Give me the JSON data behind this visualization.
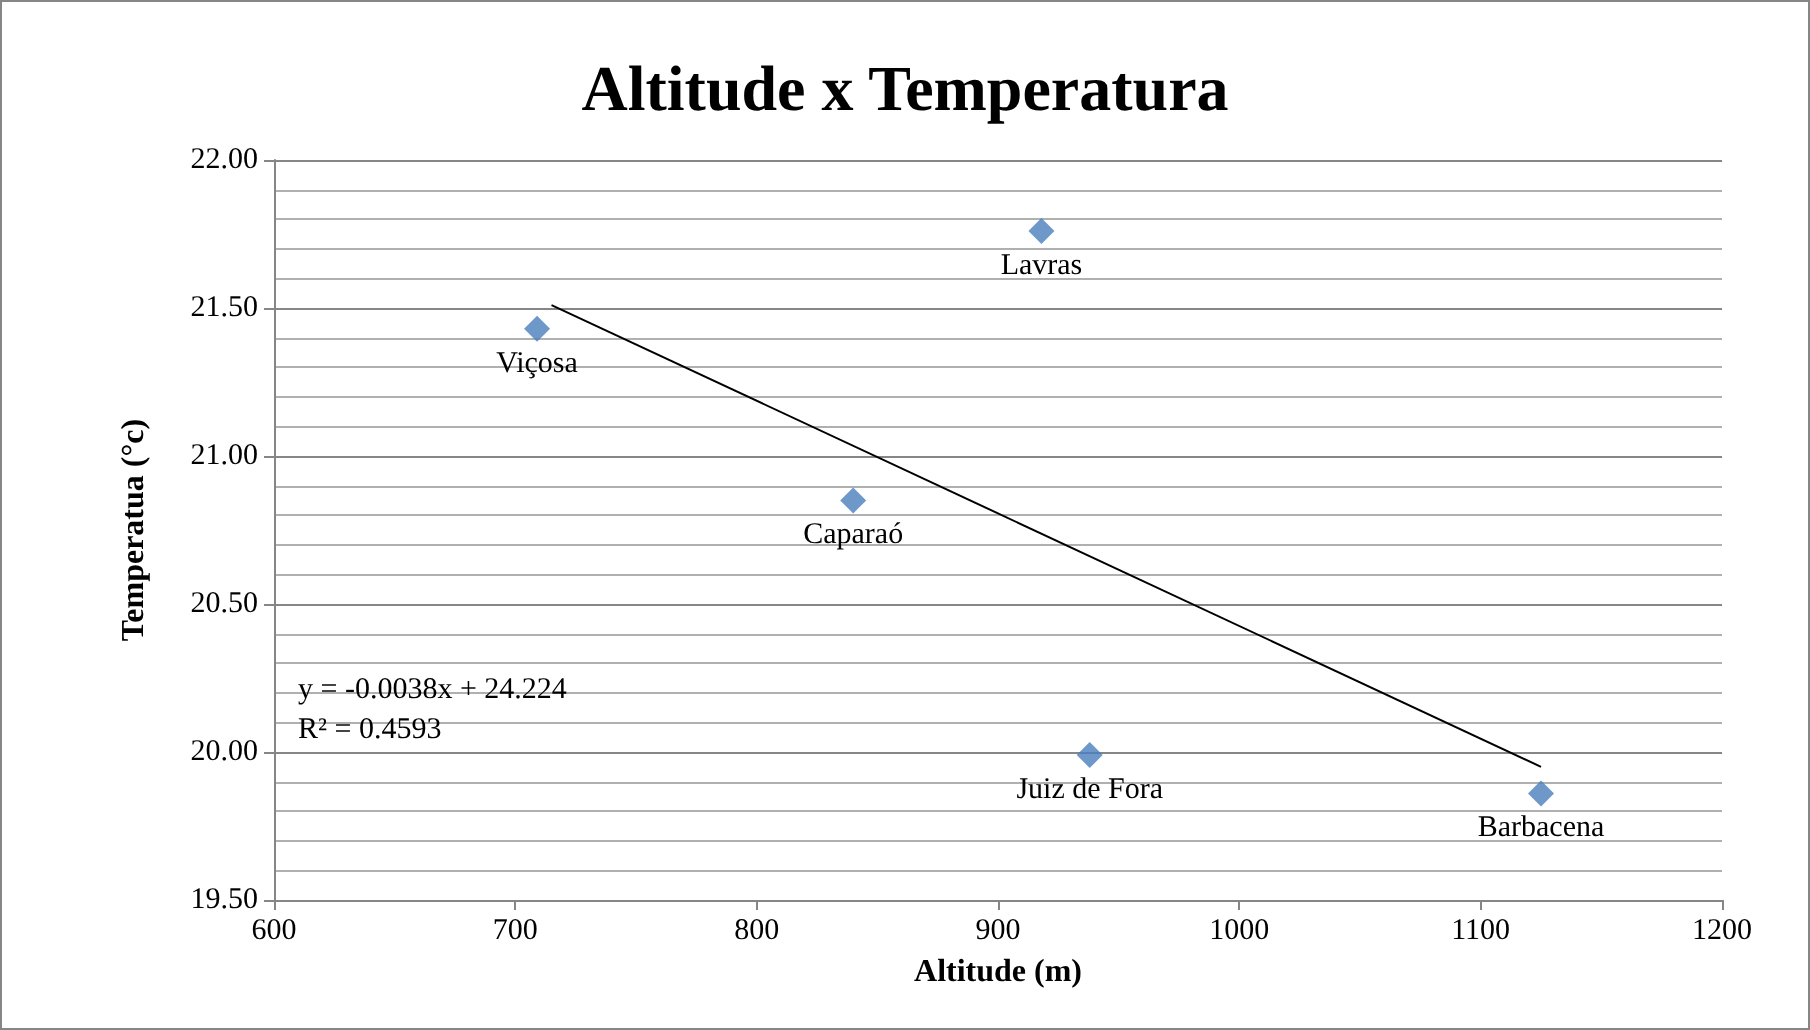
{
  "chart_data": {
    "type": "scatter",
    "title": "Altitude x Temperatura",
    "xlabel": "Altitude (m)",
    "ylabel": "Temperatua (°c)",
    "marker": "diamond",
    "series": [
      {
        "color": "#4a7ebb",
        "x": [
          918,
          709,
          840,
          938,
          1125
        ],
        "values": [
          21.76,
          21.43,
          20.85,
          19.99,
          19.86
        ]
      },
      {
        "type": "line",
        "color": "#000000",
        "x": [
          715,
          1125
        ],
        "values": [
          21.51,
          19.95
        ],
        "marker": "none"
      }
    ],
    "xlim": [
      600,
      1200
    ],
    "xticks": [
      600,
      700,
      800,
      900,
      1000,
      1100,
      1200
    ],
    "ylim": [
      19.5,
      22
    ],
    "yticks": [
      {
        "value": 19.5,
        "label": "19.50"
      },
      {
        "value": 20,
        "label": "20.00"
      },
      {
        "value": 20.5,
        "label": "20.50"
      },
      {
        "value": 21,
        "label": "21.00"
      },
      {
        "value": 21.5,
        "label": "21.50"
      },
      {
        "value": 22,
        "label": "22.00"
      }
    ],
    "grid": "y",
    "annotations": [
      {
        "text": "Lavras",
        "x": 918,
        "y": 21.76
      },
      {
        "text": "Viçosa",
        "x": 709,
        "y": 21.43
      },
      {
        "text": "Caparaó",
        "x": 840,
        "y": 20.85
      },
      {
        "text": "Juiz de Fora",
        "x": 938,
        "y": 19.99
      },
      {
        "text": "Barbacena",
        "x": 1125,
        "y": 19.86
      },
      "y = -0.0038x + 24.224\nR² = 0.4593"
    ]
  }
}
